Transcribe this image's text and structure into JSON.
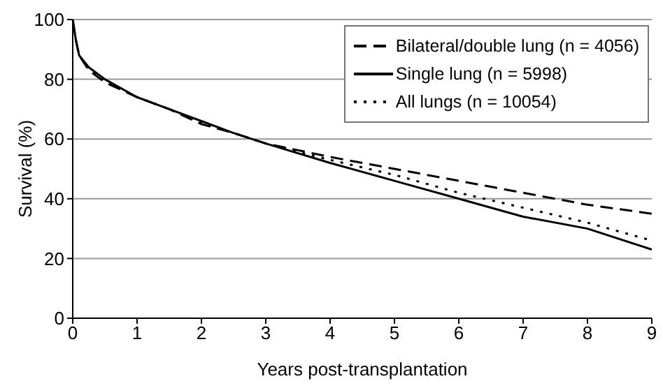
{
  "chart_data": {
    "type": "line",
    "xlabel": "Years post-transplantation",
    "ylabel": "Survival (%)",
    "xlim": [
      0,
      9
    ],
    "xticks": [
      0,
      1,
      2,
      3,
      4,
      5,
      6,
      7,
      8,
      9
    ],
    "ylim": [
      0,
      100
    ],
    "yticks": [
      0,
      20,
      40,
      60,
      80,
      100
    ],
    "grid": "y",
    "legend": "top right",
    "marker": "none",
    "series": [
      {
        "name": "Bilateral/double lung (n = 4056)",
        "color": "#000000",
        "line_style": "dashed",
        "x": [
          0,
          0.05,
          0.1,
          0.25,
          0.5,
          1,
          1.5,
          2,
          2.5,
          3,
          4,
          5,
          6,
          7,
          8,
          9
        ],
        "values": [
          100,
          93,
          88,
          83,
          79,
          74,
          70,
          65,
          62,
          58.5,
          54,
          50,
          46,
          42,
          38,
          35
        ]
      },
      {
        "name": "Single lung (n = 5998)",
        "color": "#000000",
        "line_style": "solid",
        "x": [
          0,
          0.05,
          0.1,
          0.25,
          0.5,
          1,
          1.5,
          2,
          2.5,
          3,
          4,
          5,
          6,
          7,
          8,
          9
        ],
        "values": [
          100,
          93,
          88,
          84,
          80,
          74,
          70,
          66,
          62,
          58.5,
          52,
          46,
          40,
          34,
          30,
          23
        ]
      },
      {
        "name": "All lungs (n = 10054)",
        "color": "#000000",
        "line_style": "dotted",
        "x": [
          0,
          0.05,
          0.1,
          0.25,
          0.5,
          1,
          1.5,
          2,
          2.5,
          3,
          4,
          5,
          6,
          7,
          8,
          9
        ],
        "values": [
          100,
          93,
          88,
          83.5,
          79.5,
          74,
          70,
          65.5,
          62,
          58.5,
          53,
          48,
          42,
          37,
          32,
          26
        ]
      }
    ]
  }
}
